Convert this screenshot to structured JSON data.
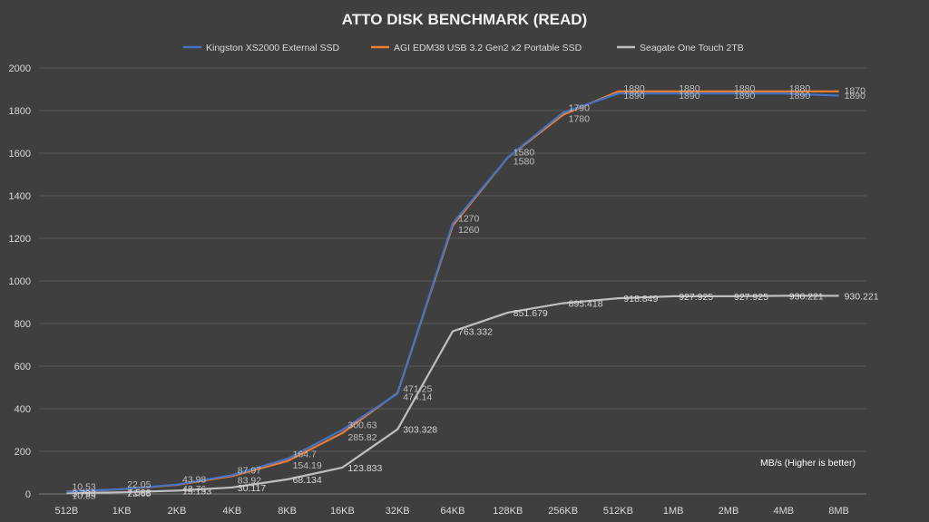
{
  "chart_data": {
    "type": "line",
    "title": "ATTO DISK BENCHMARK (READ)",
    "xlabel": "",
    "ylabel": "",
    "annotation": "MB/s (Higher is better)",
    "categories": [
      "512B",
      "1KB",
      "2KB",
      "4KB",
      "8KB",
      "16KB",
      "32KB",
      "64KB",
      "128KB",
      "256KB",
      "512KB",
      "1MB",
      "2MB",
      "4MB",
      "8MB"
    ],
    "ylim": [
      0,
      2000
    ],
    "yticks": [
      "0",
      "200",
      "400",
      "600",
      "800",
      "1000",
      "1200",
      "1400",
      "1600",
      "1800",
      "2000"
    ],
    "grid": true,
    "legend_position": "top",
    "series": [
      {
        "name": "Kingston XS2000 External SSD",
        "color": "#4472c4",
        "values": [
          10.53,
          22.05,
          43.98,
          87.97,
          164.7,
          300.63,
          471.25,
          1270,
          1580,
          1790,
          1880,
          1880,
          1880,
          1880,
          1870
        ],
        "labels": [
          "10.53",
          "22.05",
          "43.98",
          "87.97",
          "164.7",
          "300.63",
          "471.25",
          "1270",
          "1580",
          "1790",
          "1880",
          "1880",
          "1880",
          "1880",
          "1870"
        ]
      },
      {
        "name": "AGI EDM38 USB 3.2 Gen2 x2 Portable SSD",
        "color": "#ed7d31",
        "values": [
          10.85,
          21.65,
          42.76,
          83.92,
          154.19,
          285.82,
          474.14,
          1260,
          1580,
          1780,
          1890,
          1890,
          1890,
          1890,
          1890
        ],
        "labels": [
          "10.85",
          "21.65",
          "42.76",
          "83.92",
          "154.19",
          "285.82",
          "474.14",
          "1260",
          "1580",
          "1780",
          "1890",
          "1890",
          "1890",
          "1890",
          "1890"
        ]
      },
      {
        "name": "Seagate One Touch 2TB",
        "color": "#bfbfbf",
        "values": [
          3.793,
          7.588,
          15.133,
          30.117,
          68.134,
          123.833,
          303.328,
          763.332,
          851.679,
          895.418,
          918.849,
          927.925,
          927.925,
          930.221,
          930.221
        ],
        "labels": [
          "3.793",
          "7.588",
          "15.133",
          "30.117",
          "68.134",
          "123.833",
          "303.328",
          "763.332",
          "851.679",
          "895.418",
          "918.849",
          "927.925",
          "927.925",
          "930.221",
          "930.221"
        ]
      }
    ]
  }
}
